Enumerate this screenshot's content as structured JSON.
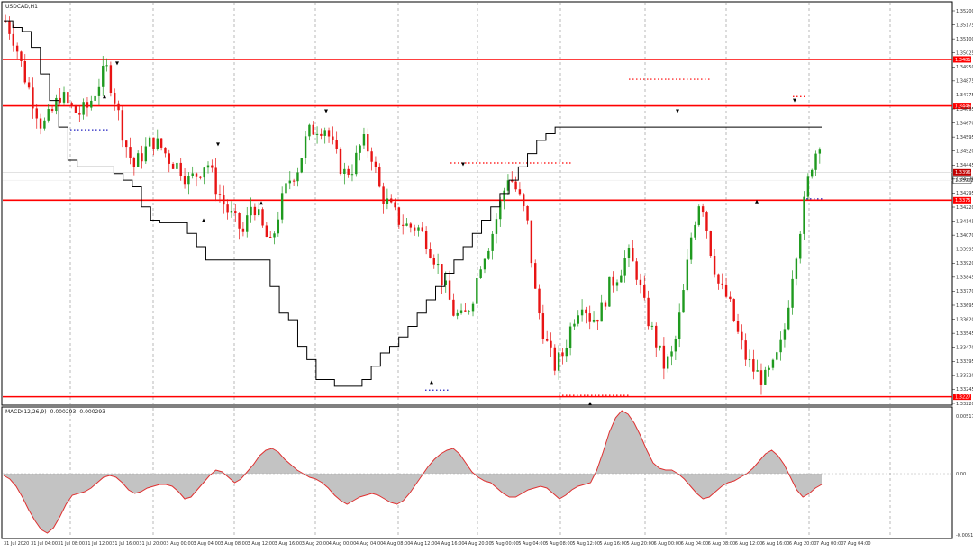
{
  "window": {
    "title": "USDCAD,H1"
  },
  "indicator": {
    "label": "MACD(12,26,9) -0.000293 -0.000293"
  },
  "colors": {
    "bull": "#1f9a1f",
    "bear": "#e81414",
    "level": "#ff0000",
    "ma": "#000000",
    "macd_fill": "#c3c3c3",
    "macd_line": "#e03030",
    "grid": "#8a8a8a",
    "current": "#c00000"
  },
  "price_axis": {
    "min": 1.3222,
    "max": 1.3523,
    "ticks": [
      "1.35200",
      "1.35175",
      "1.35100",
      "1.35025",
      "1.34950",
      "1.34875",
      "1.34775",
      "1.34695",
      "1.34670",
      "1.34595",
      "1.34520",
      "1.34445",
      "1.34370",
      "1.34295",
      "1.34220",
      "1.34145",
      "1.34070",
      "1.33995",
      "1.33920",
      "1.33845",
      "1.33770",
      "1.33695",
      "1.33620",
      "1.33545",
      "1.33470",
      "1.33395",
      "1.33320",
      "1.33245",
      "1.33220"
    ]
  },
  "levels": [
    {
      "price": 1.3481,
      "label": "1.34810"
    },
    {
      "price": 1.3446,
      "label": "1.34460"
    },
    {
      "price": 1.3375,
      "label": "1.33752"
    },
    {
      "price": 1.3227,
      "label": "1.32272"
    }
  ],
  "current_price": {
    "price": 1.3396,
    "label": "1.33965"
  },
  "bid_price": {
    "price": 1.339,
    "label": "1.33902"
  },
  "macd_axis": {
    "max_label": "0.005172",
    "zero_label": "0.00",
    "min_label": "-0.005180"
  },
  "time_axis": [
    "31 Jul 2020",
    "31 Jul 04:00",
    "31 Jul 08:00",
    "31 Jul 12:00",
    "31 Jul 16:00",
    "31 Jul 20:00",
    "3 Aug 00:00",
    "3 Aug 04:00",
    "3 Aug 08:00",
    "3 Aug 12:00",
    "3 Aug 16:00",
    "3 Aug 20:00",
    "4 Aug 00:00",
    "4 Aug 04:00",
    "4 Aug 08:00",
    "4 Aug 12:00",
    "4 Aug 16:00",
    "4 Aug 20:00",
    "5 Aug 00:00",
    "5 Aug 04:00",
    "5 Aug 08:00",
    "5 Aug 12:00",
    "5 Aug 16:00",
    "5 Aug 20:00",
    "6 Aug 00:00",
    "6 Aug 04:00",
    "6 Aug 08:00",
    "6 Aug 12:00",
    "6 Aug 16:00",
    "6 Aug 20:00",
    "7 Aug 00:00",
    "7 Aug 04:00"
  ],
  "chart_data": {
    "type": "candlestick",
    "title": "USDCAD,H1",
    "symbol": "USDCAD",
    "timeframe": "H1",
    "ylim": [
      1.3222,
      1.3523
    ],
    "ma_series": [
      1.351,
      1.3505,
      1.3502,
      1.349,
      1.347,
      1.345,
      1.343,
      1.3405,
      1.34,
      1.34,
      1.34,
      1.34,
      1.3395,
      1.339,
      1.3385,
      1.337,
      1.336,
      1.3358,
      1.3358,
      1.3358,
      1.335,
      1.334,
      1.333,
      1.333,
      1.333,
      1.333,
      1.333,
      1.333,
      1.333,
      1.331,
      1.329,
      1.3285,
      1.3265,
      1.3255,
      1.324,
      1.324,
      1.3235,
      1.3235,
      1.3235,
      1.324,
      1.325,
      1.326,
      1.3265,
      1.3272,
      1.328,
      1.329,
      1.33,
      1.331,
      1.332,
      1.333,
      1.334,
      1.335,
      1.336,
      1.337,
      1.338,
      1.339,
      1.34,
      1.341,
      1.342,
      1.3425,
      1.343,
      1.343,
      1.343,
      1.343,
      1.343,
      1.343,
      1.343,
      1.343,
      1.343,
      1.343,
      1.343,
      1.343,
      1.343,
      1.343,
      1.343,
      1.343,
      1.343,
      1.343,
      1.343,
      1.343,
      1.343,
      1.343,
      1.343,
      1.343,
      1.343,
      1.343,
      1.343,
      1.343,
      1.343,
      1.343
    ]
  }
}
